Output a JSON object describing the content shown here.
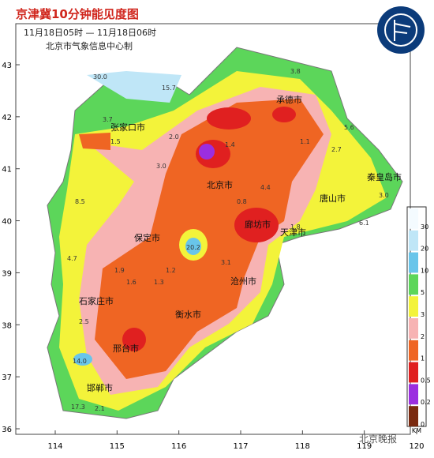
{
  "header": {
    "title": "京津冀10分钟能见度图",
    "subtitle": "11月18日05时 — 11月18日06时",
    "credit": "北京市气象信息中心制"
  },
  "axes": {
    "xticks": [
      114,
      115,
      116,
      117,
      118,
      119,
      120
    ],
    "yticks": [
      36,
      37,
      38,
      39,
      40,
      41,
      42,
      43
    ]
  },
  "cities": [
    "承德市",
    "张家口市",
    "北京市",
    "秦皇岛市",
    "唐山市",
    "廊坊市",
    "天津市",
    "保定市",
    "沧州市",
    "石家庄市",
    "衡水市",
    "邢台市",
    "邯郸市"
  ],
  "stations": [
    "30.0",
    "15.7",
    "3.8",
    "3.7",
    "1.5",
    "3.0",
    "2.0",
    "1.4",
    "1.1",
    "5.6",
    "2.7",
    "3.0",
    "8.5",
    "4.7",
    "1.8",
    "20.2",
    "1.6",
    "1.9",
    "2.5",
    "3.1",
    "14.0",
    "17.3",
    "2.1",
    "1.3",
    "1.2",
    "4.4",
    "6.1",
    "0.8"
  ],
  "legend": {
    "unit": "KM",
    "levels": [
      30,
      20,
      10,
      5,
      3,
      2,
      1,
      0.5,
      0.2,
      0
    ],
    "colors": [
      "#f4fbff",
      "#bfe6f7",
      "#69c5ea",
      "#5cd65a",
      "#f3f33a",
      "#f7b3b3",
      "#ef6523",
      "#e02020",
      "#9b2ee0",
      "#7a2a10"
    ]
  },
  "watermark": "北京晚报"
}
